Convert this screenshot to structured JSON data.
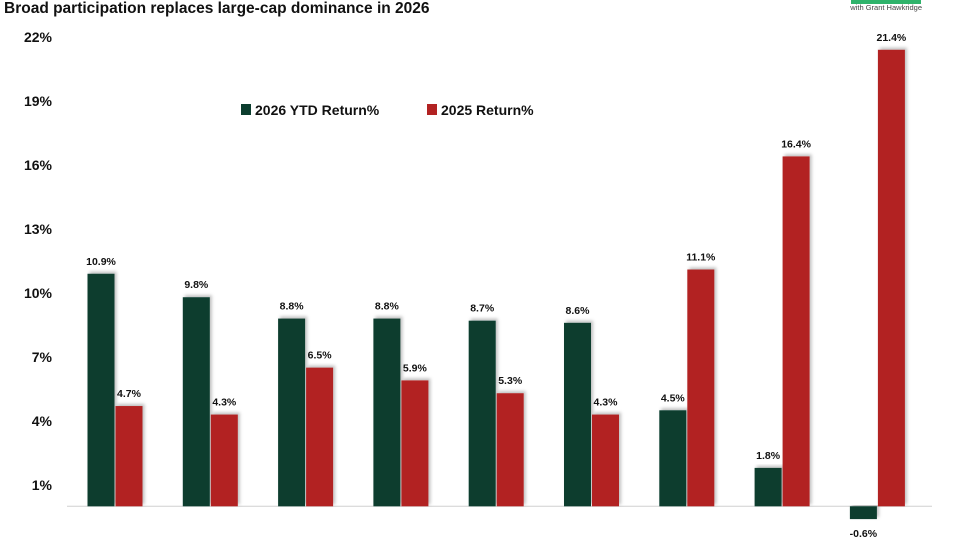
{
  "title": "Broad participation replaces large-cap dominance in 2026",
  "logo": {
    "subtitle": "with Grant Hawkridge"
  },
  "chart_data": {
    "type": "bar",
    "title": "Broad participation replaces large-cap dominance in 2026",
    "xlabel": "",
    "ylabel": "",
    "categories": [
      "",
      "",
      "",
      "",
      "",
      "",
      "",
      "",
      ""
    ],
    "series": [
      {
        "name": "2026 YTD Return%",
        "color": "#0b3d2e",
        "values": [
          10.9,
          9.8,
          8.8,
          8.8,
          8.7,
          8.6,
          4.5,
          1.8,
          -0.6
        ]
      },
      {
        "name": "2025 Return%",
        "color": "#b22222",
        "values": [
          4.7,
          4.3,
          6.5,
          5.9,
          5.3,
          4.3,
          11.1,
          16.4,
          21.4
        ]
      }
    ],
    "yticks": [
      1,
      4,
      7,
      10,
      13,
      16,
      19,
      22
    ],
    "ytick_labels": [
      "1%",
      "4%",
      "7%",
      "10%",
      "13%",
      "16%",
      "19%",
      "22%"
    ],
    "ylim": [
      -1.5,
      23
    ],
    "grid": false,
    "legend": "top-left",
    "data_labels": true
  }
}
